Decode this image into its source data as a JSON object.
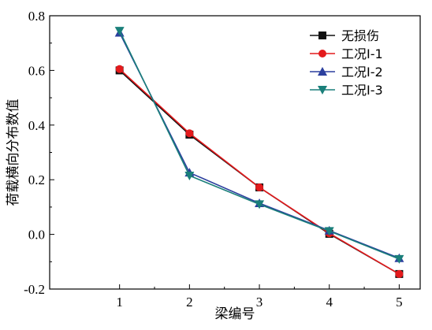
{
  "chart_data": {
    "type": "line",
    "xlabel": "梁编号",
    "ylabel": "荷载横向分布数值",
    "x": [
      1,
      2,
      3,
      4,
      5
    ],
    "xlim": [
      0,
      5.3
    ],
    "ylim": [
      -0.2,
      0.8
    ],
    "xticks": [
      "1",
      "2",
      "3",
      "4",
      "5"
    ],
    "yticks": [
      "-0.2",
      "0.0",
      "0.2",
      "0.4",
      "0.6",
      "0.8"
    ],
    "grid": false,
    "legend_position": "top-right",
    "series": [
      {
        "name": "无损伤",
        "values": [
          0.6,
          0.365,
          0.172,
          0.002,
          -0.145
        ],
        "color": "#111111",
        "marker": "square"
      },
      {
        "name": "工况Ⅰ-1",
        "values": [
          0.605,
          0.37,
          0.172,
          0.004,
          -0.145
        ],
        "color": "#e31a1c",
        "marker": "circle"
      },
      {
        "name": "工况Ⅰ-2",
        "values": [
          0.738,
          0.226,
          0.114,
          0.014,
          -0.087
        ],
        "color": "#2b3f9e",
        "marker": "triangle-up"
      },
      {
        "name": "工况Ⅰ-3",
        "values": [
          0.745,
          0.215,
          0.11,
          0.012,
          -0.09
        ],
        "color": "#1a7f7a",
        "marker": "triangle-down"
      }
    ]
  }
}
